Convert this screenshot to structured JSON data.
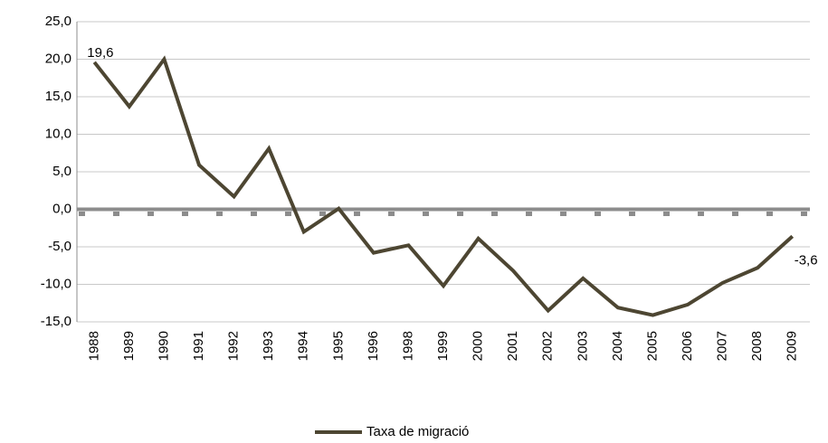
{
  "chart_data": {
    "type": "line",
    "categories": [
      "1988",
      "1989",
      "1990",
      "1991",
      "1992",
      "1993",
      "1994",
      "1995",
      "1996",
      "1998",
      "1999",
      "2000",
      "2001",
      "2002",
      "2003",
      "2004",
      "2005",
      "2006",
      "2007",
      "2008",
      "2009"
    ],
    "series": [
      {
        "name": "Taxa de migració",
        "color": "#4d4632",
        "values": [
          19.6,
          13.7,
          20.0,
          5.9,
          1.7,
          8.1,
          -3.0,
          0.1,
          -5.8,
          -4.8,
          -10.2,
          -3.9,
          -8.2,
          -13.5,
          -9.2,
          -13.1,
          -14.1,
          -12.7,
          -9.8,
          -7.8,
          -3.6
        ],
        "value_labels": [
          "19,6",
          null,
          null,
          null,
          null,
          null,
          null,
          null,
          null,
          null,
          null,
          null,
          null,
          null,
          null,
          null,
          null,
          null,
          null,
          null,
          "-3,6"
        ]
      }
    ],
    "ylim": [
      -15,
      25
    ],
    "yticks": [
      {
        "value": -15,
        "label": "-15,0"
      },
      {
        "value": -10,
        "label": "-10,0"
      },
      {
        "value": -5,
        "label": "-5,0"
      },
      {
        "value": 0,
        "label": "0,0"
      },
      {
        "value": 5,
        "label": "5,0"
      },
      {
        "value": 10,
        "label": "10,0"
      },
      {
        "value": 15,
        "label": "15,0"
      },
      {
        "value": 20,
        "label": "20,0"
      },
      {
        "value": 25,
        "label": "25,0"
      }
    ],
    "grid": true,
    "legend": "bottom"
  }
}
